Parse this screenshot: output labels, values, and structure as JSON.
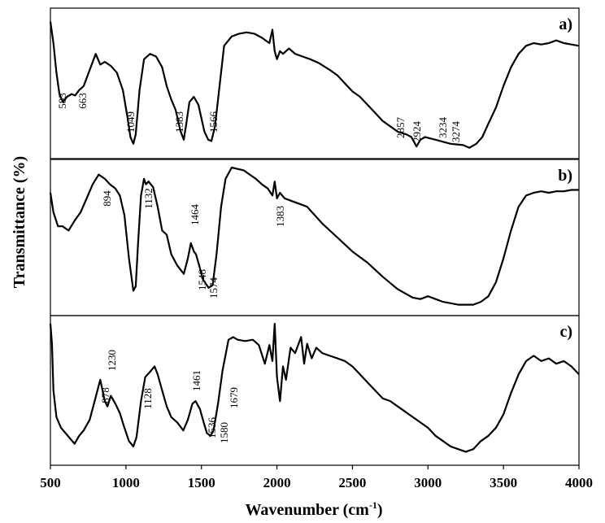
{
  "chart_data": {
    "type": "line",
    "title": "",
    "xlabel": "Wavenumber (cm",
    "xlabel_sup": "-1",
    "xlabel_close": ")",
    "ylabel": "Transmittance  (%)",
    "xlim": [
      500,
      4000
    ],
    "x_ticks": [
      "500",
      "1000",
      "1500",
      "2000",
      "2500",
      "3000",
      "3500",
      "4000"
    ],
    "grid": false,
    "legend": "none",
    "line_color": "#000000",
    "panels": [
      {
        "label": "a)",
        "series": {
          "x": [
            500,
            520,
            540,
            560,
            583,
            610,
            640,
            663,
            690,
            720,
            760,
            800,
            830,
            860,
            900,
            940,
            980,
            1010,
            1030,
            1049,
            1065,
            1090,
            1120,
            1160,
            1200,
            1240,
            1270,
            1300,
            1330,
            1360,
            1383,
            1400,
            1420,
            1450,
            1480,
            1500,
            1520,
            1545,
            1566,
            1590,
            1620,
            1650,
            1700,
            1750,
            1800,
            1850,
            1900,
            1950,
            1970,
            1985,
            2000,
            2020,
            2040,
            2080,
            2120,
            2170,
            2220,
            2280,
            2350,
            2400,
            2450,
            2500,
            2550,
            2600,
            2650,
            2700,
            2750,
            2800,
            2857,
            2890,
            2924,
            2950,
            2980,
            3050,
            3150,
            3234,
            3274,
            3320,
            3360,
            3400,
            3450,
            3500,
            3550,
            3600,
            3650,
            3700,
            3750,
            3800,
            3850,
            3900,
            3950,
            4000
          ],
          "y": [
            0.96,
            0.8,
            0.58,
            0.42,
            0.36,
            0.4,
            0.42,
            0.41,
            0.45,
            0.48,
            0.6,
            0.72,
            0.64,
            0.66,
            0.63,
            0.58,
            0.45,
            0.25,
            0.1,
            0.05,
            0.12,
            0.45,
            0.68,
            0.72,
            0.7,
            0.62,
            0.48,
            0.38,
            0.3,
            0.15,
            0.08,
            0.2,
            0.36,
            0.4,
            0.34,
            0.24,
            0.14,
            0.08,
            0.07,
            0.18,
            0.48,
            0.78,
            0.85,
            0.87,
            0.88,
            0.87,
            0.84,
            0.8,
            0.9,
            0.74,
            0.68,
            0.74,
            0.72,
            0.76,
            0.72,
            0.7,
            0.68,
            0.65,
            0.6,
            0.56,
            0.5,
            0.44,
            0.4,
            0.34,
            0.28,
            0.22,
            0.18,
            0.14,
            0.12,
            0.1,
            0.03,
            0.08,
            0.1,
            0.08,
            0.05,
            0.04,
            0.02,
            0.05,
            0.1,
            0.2,
            0.32,
            0.48,
            0.62,
            0.72,
            0.78,
            0.8,
            0.79,
            0.8,
            0.82,
            0.8,
            0.79,
            0.78
          ]
        },
        "annotations": [
          "583",
          "663",
          "1049",
          "1383",
          "1566",
          "2857",
          "2924",
          "3234",
          "3274"
        ]
      },
      {
        "label": "b)",
        "series": {
          "x": [
            500,
            520,
            550,
            580,
            620,
            660,
            700,
            740,
            780,
            820,
            860,
            894,
            930,
            960,
            990,
            1020,
            1049,
            1065,
            1080,
            1100,
            1120,
            1132,
            1150,
            1180,
            1210,
            1240,
            1270,
            1300,
            1340,
            1383,
            1410,
            1430,
            1450,
            1464,
            1490,
            1510,
            1548,
            1574,
            1600,
            1630,
            1660,
            1700,
            1740,
            1780,
            1820,
            1860,
            1900,
            1940,
            1970,
            1985,
            2000,
            2020,
            2050,
            2100,
            2150,
            2200,
            2250,
            2300,
            2400,
            2500,
            2600,
            2700,
            2800,
            2900,
            2950,
            3000,
            3050,
            3100,
            3150,
            3200,
            3250,
            3300,
            3350,
            3400,
            3450,
            3500,
            3550,
            3600,
            3650,
            3700,
            3750,
            3800,
            3850,
            3900,
            3950,
            4000
          ],
          "y": [
            0.82,
            0.68,
            0.58,
            0.58,
            0.55,
            0.62,
            0.68,
            0.78,
            0.88,
            0.95,
            0.92,
            0.88,
            0.85,
            0.8,
            0.66,
            0.35,
            0.12,
            0.15,
            0.45,
            0.8,
            0.92,
            0.88,
            0.9,
            0.86,
            0.72,
            0.55,
            0.52,
            0.38,
            0.3,
            0.24,
            0.35,
            0.46,
            0.4,
            0.38,
            0.28,
            0.2,
            0.14,
            0.16,
            0.38,
            0.72,
            0.92,
            1.0,
            0.99,
            0.98,
            0.95,
            0.92,
            0.88,
            0.85,
            0.8,
            0.9,
            0.78,
            0.82,
            0.78,
            0.76,
            0.74,
            0.72,
            0.66,
            0.6,
            0.5,
            0.4,
            0.32,
            0.22,
            0.13,
            0.07,
            0.06,
            0.08,
            0.06,
            0.04,
            0.03,
            0.02,
            0.02,
            0.02,
            0.04,
            0.08,
            0.18,
            0.35,
            0.55,
            0.72,
            0.8,
            0.82,
            0.83,
            0.82,
            0.83,
            0.83,
            0.84,
            0.84
          ]
        },
        "annotations": [
          "894",
          "1132",
          "1464",
          "1383",
          "1548",
          "1574"
        ]
      },
      {
        "label": "c)",
        "series": {
          "x": [
            500,
            510,
            520,
            540,
            570,
            600,
            630,
            660,
            690,
            720,
            760,
            800,
            830,
            860,
            878,
            900,
            930,
            960,
            990,
            1020,
            1049,
            1070,
            1100,
            1128,
            1160,
            1190,
            1210,
            1240,
            1270,
            1300,
            1340,
            1380,
            1410,
            1440,
            1461,
            1490,
            1515,
            1536,
            1560,
            1580,
            1610,
            1640,
            1679,
            1710,
            1740,
            1790,
            1840,
            1880,
            1920,
            1950,
            1970,
            1985,
            2000,
            2020,
            2040,
            2060,
            2090,
            2120,
            2160,
            2180,
            2200,
            2230,
            2260,
            2300,
            2350,
            2400,
            2450,
            2500,
            2550,
            2600,
            2650,
            2700,
            2750,
            2800,
            2850,
            2900,
            2950,
            3000,
            3050,
            3100,
            3150,
            3200,
            3250,
            3300,
            3350,
            3400,
            3450,
            3500,
            3550,
            3600,
            3650,
            3700,
            3750,
            3800,
            3850,
            3900,
            3950,
            4000
          ],
          "y": [
            1.0,
            0.85,
            0.5,
            0.3,
            0.22,
            0.18,
            0.14,
            0.1,
            0.16,
            0.2,
            0.28,
            0.45,
            0.58,
            0.42,
            0.38,
            0.46,
            0.4,
            0.33,
            0.22,
            0.12,
            0.08,
            0.15,
            0.42,
            0.6,
            0.64,
            0.68,
            0.62,
            0.5,
            0.38,
            0.3,
            0.26,
            0.2,
            0.28,
            0.4,
            0.42,
            0.36,
            0.26,
            0.18,
            0.16,
            0.2,
            0.4,
            0.65,
            0.88,
            0.9,
            0.88,
            0.87,
            0.88,
            0.84,
            0.7,
            0.84,
            0.72,
            1.0,
            0.6,
            0.42,
            0.68,
            0.58,
            0.82,
            0.78,
            0.9,
            0.7,
            0.85,
            0.74,
            0.82,
            0.78,
            0.76,
            0.74,
            0.72,
            0.68,
            0.62,
            0.56,
            0.5,
            0.44,
            0.42,
            0.38,
            0.34,
            0.3,
            0.26,
            0.22,
            0.16,
            0.12,
            0.08,
            0.06,
            0.04,
            0.06,
            0.12,
            0.16,
            0.22,
            0.32,
            0.48,
            0.62,
            0.72,
            0.76,
            0.72,
            0.74,
            0.7,
            0.72,
            0.68,
            0.62
          ]
        },
        "annotations": [
          "1230",
          "878",
          "1128",
          "1461",
          "1536",
          "1580",
          "1679"
        ]
      }
    ]
  }
}
